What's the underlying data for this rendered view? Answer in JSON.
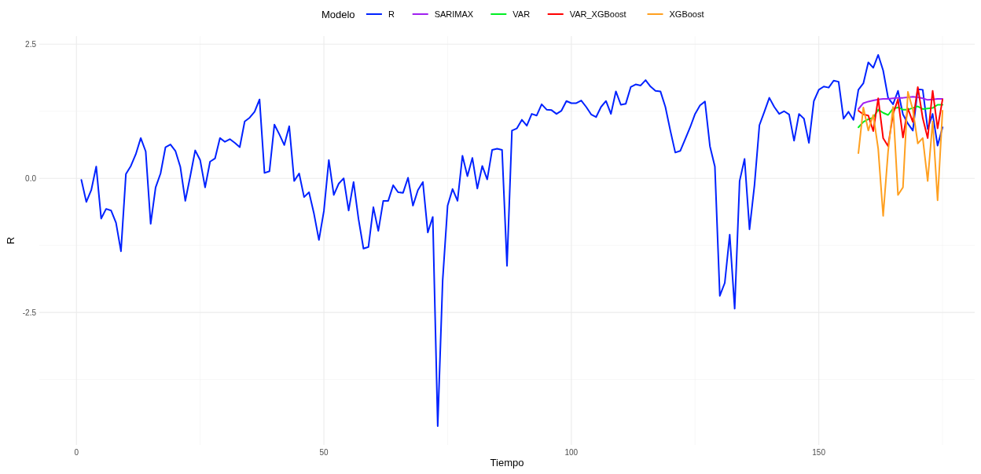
{
  "chart_data": {
    "type": "line",
    "xlabel": "Tiempo",
    "ylabel": "R",
    "legend_title": "Modelo",
    "legend": "top",
    "grid": true,
    "line_style": "solid",
    "xlim": [
      -7.5,
      181.5
    ],
    "ylim": [
      -4.97,
      2.65
    ],
    "xticks": [
      0,
      50,
      100,
      150
    ],
    "yticks": [
      {
        "value": -2.5,
        "label": "-2.5"
      },
      {
        "value": 0,
        "label": "0.0"
      },
      {
        "value": 2.5,
        "label": "2.5"
      }
    ],
    "series": [
      {
        "name": "R",
        "color": "#0022ff",
        "x": [
          1,
          2,
          3,
          4,
          5,
          6,
          7,
          8,
          9,
          10,
          11,
          12,
          13,
          14,
          15,
          16,
          17,
          18,
          19,
          20,
          21,
          22,
          23,
          24,
          25,
          26,
          27,
          28,
          29,
          30,
          31,
          32,
          33,
          34,
          35,
          36,
          37,
          38,
          39,
          40,
          41,
          42,
          43,
          44,
          45,
          46,
          47,
          48,
          49,
          50,
          51,
          52,
          53,
          54,
          55,
          56,
          57,
          58,
          59,
          60,
          61,
          62,
          63,
          64,
          65,
          66,
          67,
          68,
          69,
          70,
          71,
          72,
          73,
          74,
          75,
          76,
          77,
          78,
          79,
          80,
          81,
          82,
          83,
          84,
          85,
          86,
          87,
          88,
          89,
          90,
          91,
          92,
          93,
          94,
          95,
          96,
          97,
          98,
          99,
          100,
          101,
          102,
          103,
          104,
          105,
          106,
          107,
          108,
          109,
          110,
          111,
          112,
          113,
          114,
          115,
          116,
          117,
          118,
          119,
          120,
          121,
          122,
          123,
          124,
          125,
          126,
          127,
          128,
          129,
          130,
          131,
          132,
          133,
          134,
          135,
          136,
          137,
          138,
          139,
          140,
          141,
          142,
          143,
          144,
          145,
          146,
          147,
          148,
          149,
          150,
          151,
          152,
          153,
          154,
          155,
          156,
          157,
          158,
          159,
          160,
          161,
          162,
          163,
          164,
          165,
          166,
          167,
          168,
          169,
          170,
          171,
          172,
          173,
          174,
          175
        ],
        "values": [
          -0.03,
          -0.44,
          -0.22,
          0.22,
          -0.75,
          -0.57,
          -0.6,
          -0.83,
          -1.36,
          0.08,
          0.23,
          0.45,
          0.75,
          0.5,
          -0.85,
          -0.17,
          0.09,
          0.58,
          0.63,
          0.51,
          0.21,
          -0.42,
          0.04,
          0.52,
          0.34,
          -0.17,
          0.31,
          0.37,
          0.75,
          0.68,
          0.73,
          0.66,
          0.58,
          1.06,
          1.13,
          1.24,
          1.47,
          0.1,
          0.13,
          1.0,
          0.82,
          0.62,
          0.97,
          -0.05,
          0.09,
          -0.35,
          -0.26,
          -0.66,
          -1.15,
          -0.61,
          0.34,
          -0.31,
          -0.1,
          0.0,
          -0.6,
          -0.07,
          -0.76,
          -1.31,
          -1.28,
          -0.54,
          -0.98,
          -0.42,
          -0.42,
          -0.13,
          -0.26,
          -0.27,
          0.01,
          -0.51,
          -0.22,
          -0.07,
          -1.01,
          -0.72,
          -4.62,
          -1.9,
          -0.51,
          -0.2,
          -0.42,
          0.42,
          0.04,
          0.38,
          -0.19,
          0.23,
          -0.02,
          0.53,
          0.55,
          0.53,
          -1.63,
          0.89,
          0.93,
          1.09,
          0.98,
          1.2,
          1.17,
          1.38,
          1.28,
          1.27,
          1.2,
          1.26,
          1.44,
          1.4,
          1.4,
          1.45,
          1.33,
          1.19,
          1.14,
          1.33,
          1.44,
          1.2,
          1.62,
          1.37,
          1.39,
          1.7,
          1.75,
          1.73,
          1.83,
          1.71,
          1.63,
          1.62,
          1.33,
          0.89,
          0.48,
          0.51,
          0.73,
          0.95,
          1.2,
          1.36,
          1.43,
          0.6,
          0.22,
          -2.19,
          -1.95,
          -1.05,
          -2.43,
          -0.05,
          0.36,
          -0.95,
          -0.13,
          0.99,
          1.24,
          1.5,
          1.33,
          1.2,
          1.25,
          1.19,
          0.7,
          1.2,
          1.11,
          0.66,
          1.44,
          1.65,
          1.71,
          1.69,
          1.82,
          1.8,
          1.11,
          1.24,
          1.09,
          1.65,
          1.77,
          2.16,
          2.06,
          2.3,
          2.01,
          1.5,
          1.38,
          1.63,
          1.19,
          1.02,
          0.89,
          1.66,
          1.65,
          0.92,
          1.2,
          0.61,
          0.95
        ]
      },
      {
        "name": "SARIMAX",
        "color": "#a020f0",
        "x": [
          158,
          159,
          160,
          161,
          162,
          163,
          164,
          165,
          166,
          167,
          168,
          169,
          170,
          171,
          172,
          173,
          174,
          175
        ],
        "values": [
          1.29,
          1.4,
          1.43,
          1.45,
          1.47,
          1.48,
          1.48,
          1.49,
          1.5,
          1.5,
          1.51,
          1.52,
          1.51,
          1.49,
          1.46,
          1.47,
          1.48,
          1.48
        ]
      },
      {
        "name": "VAR",
        "color": "#00ee22",
        "x": [
          158,
          159,
          160,
          161,
          162,
          163,
          164,
          165,
          166,
          167,
          168,
          169,
          170,
          171,
          172,
          173,
          174,
          175
        ],
        "values": [
          0.95,
          1.05,
          1.1,
          1.13,
          1.28,
          1.22,
          1.18,
          1.3,
          1.32,
          1.28,
          1.28,
          1.31,
          1.34,
          1.29,
          1.3,
          1.31,
          1.37,
          1.37
        ]
      },
      {
        "name": "VAR_XGBoost",
        "color": "#ff0000",
        "x": [
          158,
          159,
          160,
          161,
          162,
          163,
          164,
          165,
          166,
          167,
          168,
          169,
          170,
          171,
          172,
          173,
          174,
          175
        ],
        "values": [
          1.26,
          1.19,
          1.17,
          0.88,
          1.49,
          0.75,
          0.6,
          1.2,
          1.47,
          0.76,
          1.3,
          1.05,
          1.7,
          1.12,
          0.75,
          1.63,
          0.93,
          1.47
        ]
      },
      {
        "name": "XGBoost",
        "color": "#ffa020",
        "x": [
          158,
          159,
          160,
          161,
          162,
          163,
          164,
          165,
          166,
          167,
          168,
          169,
          170,
          171,
          172,
          173,
          174,
          175
        ],
        "values": [
          0.47,
          1.32,
          0.89,
          1.18,
          0.55,
          -0.7,
          0.5,
          1.33,
          -0.31,
          -0.17,
          1.61,
          1.28,
          0.65,
          0.75,
          -0.05,
          1.06,
          -0.41,
          1.26
        ]
      }
    ]
  }
}
